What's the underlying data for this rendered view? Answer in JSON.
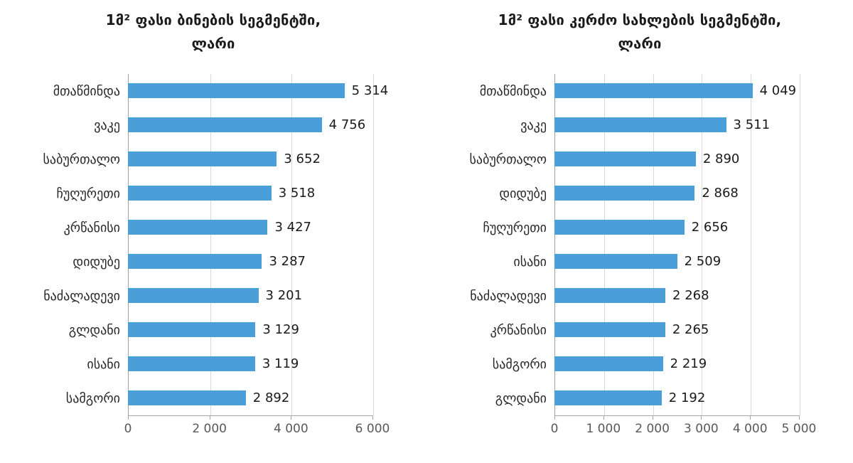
{
  "page": {
    "background": "#ffffff"
  },
  "colors": {
    "bar": "#4a9fd8",
    "gridline": "#d9d9d9",
    "axis": "#a6a6a6",
    "tick_label": "#595959",
    "category_label": "#262626",
    "value_label": "#1a1a1a",
    "title": "#1a1a1a"
  },
  "chart_data": [
    {
      "type": "bar",
      "orientation": "horizontal",
      "title_line1": "1მ² ფასი ბინების სეგმენტში,",
      "title_line2": "ლარი",
      "categories": [
        "მთაწმინდა",
        "ვაკე",
        "საბურთალო",
        "ჩუღურეთი",
        "კრწანისი",
        "დიდუბე",
        "ნაძალადევი",
        "გლდანი",
        "ისანი",
        "სამგორი"
      ],
      "values": [
        5314,
        4756,
        3652,
        3518,
        3427,
        3287,
        3201,
        3129,
        3119,
        2892
      ],
      "value_labels": [
        "5 314",
        "4 756",
        "3 652",
        "3 518",
        "3 427",
        "3 287",
        "3 201",
        "3 129",
        "3 119",
        "2 892"
      ],
      "xlim": [
        0,
        6000
      ],
      "xticks": [
        0,
        2000,
        4000,
        6000
      ],
      "xtick_labels": [
        "0",
        "2 000",
        "4 000",
        "6 000"
      ],
      "bar_color": "#4a9fd8",
      "grid": true,
      "legend": "none"
    },
    {
      "type": "bar",
      "orientation": "horizontal",
      "title_line1": "1მ² ფასი კერძო სახლების სეგმენტში,",
      "title_line2": "ლარი",
      "categories": [
        "მთაწმინდა",
        "ვაკე",
        "საბურთალო",
        "დიდუბე",
        "ჩუღურეთი",
        "ისანი",
        "ნაძალადევი",
        "კრწანისი",
        "სამგორი",
        "გლდანი"
      ],
      "values": [
        4049,
        3511,
        2890,
        2868,
        2656,
        2509,
        2268,
        2265,
        2219,
        2192
      ],
      "value_labels": [
        "4 049",
        "3 511",
        "2 890",
        "2 868",
        "2 656",
        "2 509",
        "2 268",
        "2 265",
        "2 219",
        "2 192"
      ],
      "xlim": [
        0,
        5000
      ],
      "xticks": [
        0,
        1000,
        2000,
        3000,
        4000,
        5000
      ],
      "xtick_labels": [
        "0",
        "1 000",
        "2 000",
        "3 000",
        "4 000",
        "5 000"
      ],
      "bar_color": "#4a9fd8",
      "grid": true,
      "legend": "none"
    }
  ]
}
